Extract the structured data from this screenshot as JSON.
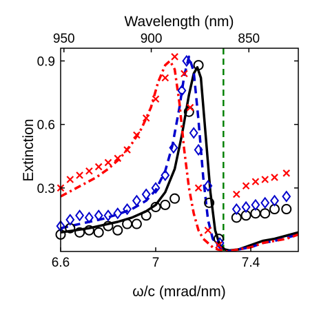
{
  "chart_data": {
    "type": "line",
    "title": "",
    "xlabel": "ω/c (mrad/nm)",
    "ylabel": "Extinction",
    "top_axis_label": "Wavelength (nm)",
    "xlim": [
      6.6,
      7.6
    ],
    "ylim": [
      0,
      0.96
    ],
    "x_ticks": [
      6.6,
      7,
      7.4
    ],
    "x_tick_labels": [
      "6.6",
      "7",
      "7.4"
    ],
    "y_ticks": [
      0.3,
      0.6,
      0.9
    ],
    "y_tick_labels": [
      "0.3",
      "0.6",
      "0.9"
    ],
    "top_ticks": [
      950,
      900,
      850
    ],
    "top_tick_labels": [
      "950",
      "900",
      "850"
    ],
    "grid": false,
    "legend": "none",
    "vertical_marker": {
      "x": 7.285,
      "color": "#008000",
      "style": "dashed"
    },
    "series": [
      {
        "color": "#000000",
        "style": "solid",
        "marker": "circle",
        "line": {
          "x": [
            6.6,
            6.66,
            6.72,
            6.78,
            6.84,
            6.9,
            6.96,
            7.0,
            7.04,
            7.08,
            7.11,
            7.14,
            7.16,
            7.175,
            7.19,
            7.21,
            7.23,
            7.25,
            7.27,
            7.29,
            7.31,
            7.35,
            7.4,
            7.45,
            7.5,
            7.55,
            7.6
          ],
          "y": [
            0.09,
            0.1,
            0.11,
            0.125,
            0.14,
            0.16,
            0.19,
            0.22,
            0.28,
            0.39,
            0.55,
            0.74,
            0.84,
            0.87,
            0.82,
            0.55,
            0.28,
            0.1,
            0.03,
            0.01,
            0.005,
            0.01,
            0.03,
            0.05,
            0.06,
            0.075,
            0.09
          ]
        },
        "markers": {
          "x": [
            6.6,
            6.64,
            6.68,
            6.72,
            6.76,
            6.8,
            6.84,
            6.88,
            6.92,
            6.96,
            7.0,
            7.04,
            7.08,
            7.14,
            7.18,
            7.225,
            7.265,
            7.34,
            7.38,
            7.42,
            7.46,
            7.5,
            7.55
          ],
          "y": [
            0.08,
            0.11,
            0.09,
            0.1,
            0.09,
            0.12,
            0.1,
            0.13,
            0.13,
            0.17,
            0.21,
            0.22,
            0.25,
            0.66,
            0.88,
            0.23,
            0.06,
            0.16,
            0.17,
            0.18,
            0.18,
            0.2,
            0.2
          ]
        }
      },
      {
        "color": "#0000cc",
        "style": "dashed",
        "marker": "diamond",
        "line": {
          "x": [
            6.6,
            6.66,
            6.72,
            6.78,
            6.84,
            6.9,
            6.96,
            7.0,
            7.04,
            7.07,
            7.1,
            7.12,
            7.14,
            7.16,
            7.18,
            7.2,
            7.22,
            7.24,
            7.26,
            7.28,
            7.3,
            7.35,
            7.4,
            7.45,
            7.5,
            7.55,
            7.6
          ],
          "y": [
            0.11,
            0.125,
            0.14,
            0.155,
            0.175,
            0.2,
            0.24,
            0.29,
            0.38,
            0.5,
            0.68,
            0.83,
            0.92,
            0.85,
            0.62,
            0.35,
            0.15,
            0.06,
            0.03,
            0.01,
            0.0,
            0.01,
            0.02,
            0.04,
            0.05,
            0.065,
            0.08
          ]
        },
        "markers": {
          "x": [
            6.6,
            6.64,
            6.68,
            6.72,
            6.76,
            6.8,
            6.84,
            6.88,
            6.92,
            6.96,
            7.0,
            7.04,
            7.075,
            7.11,
            7.13,
            7.16,
            7.18,
            7.22,
            7.27,
            7.34,
            7.38,
            7.42,
            7.46,
            7.5,
            7.55
          ],
          "y": [
            0.12,
            0.15,
            0.17,
            0.16,
            0.17,
            0.17,
            0.18,
            0.2,
            0.24,
            0.27,
            0.3,
            0.36,
            0.49,
            0.76,
            0.9,
            0.56,
            0.48,
            0.31,
            0.04,
            0.2,
            0.21,
            0.22,
            0.23,
            0.24,
            0.26
          ]
        }
      },
      {
        "color": "#ff0000",
        "style": "dashdot",
        "marker": "x",
        "line": {
          "x": [
            6.6,
            6.65,
            6.7,
            6.75,
            6.8,
            6.85,
            6.9,
            6.94,
            6.98,
            7.01,
            7.04,
            7.06,
            7.08,
            7.1,
            7.12,
            7.14,
            7.16,
            7.18,
            7.2,
            7.22,
            7.24,
            7.26,
            7.28,
            7.3,
            7.35,
            7.4,
            7.45,
            7.5,
            7.55,
            7.6
          ],
          "y": [
            0.26,
            0.29,
            0.32,
            0.35,
            0.39,
            0.44,
            0.51,
            0.58,
            0.68,
            0.8,
            0.88,
            0.9,
            0.86,
            0.7,
            0.48,
            0.3,
            0.18,
            0.1,
            0.06,
            0.04,
            0.02,
            0.01,
            0.005,
            0.0,
            0.01,
            0.02,
            0.04,
            0.05,
            0.06,
            0.08
          ]
        },
        "markers": {
          "x": [
            6.6,
            6.64,
            6.68,
            6.72,
            6.76,
            6.8,
            6.84,
            6.88,
            6.92,
            6.96,
            7.0,
            7.04,
            7.08,
            7.12,
            7.145,
            7.18,
            7.22,
            7.265,
            7.34,
            7.38,
            7.42,
            7.46,
            7.5,
            7.55
          ],
          "y": [
            0.3,
            0.34,
            0.36,
            0.38,
            0.4,
            0.42,
            0.44,
            0.48,
            0.55,
            0.63,
            0.72,
            0.82,
            0.92,
            0.84,
            0.68,
            0.3,
            0.1,
            0.03,
            0.27,
            0.31,
            0.33,
            0.34,
            0.35,
            0.37
          ]
        }
      }
    ]
  }
}
